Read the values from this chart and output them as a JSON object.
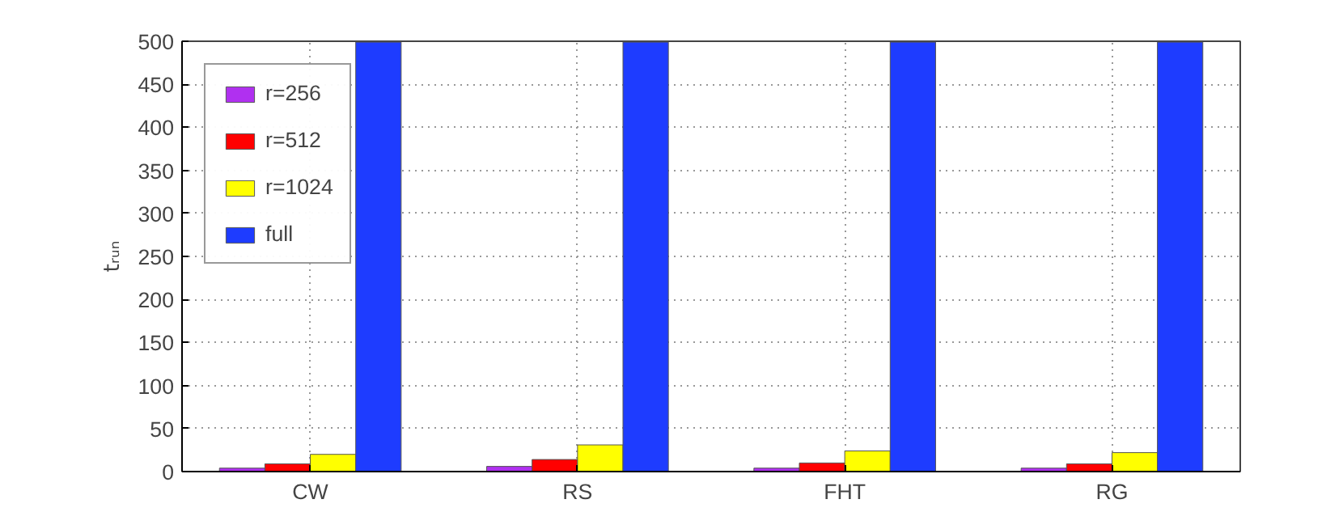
{
  "chart_data": {
    "type": "bar",
    "ylabel": "tᵣᵤₙ",
    "categories": [
      "CW",
      "RS",
      "FHT",
      "RG"
    ],
    "series": [
      {
        "name": "r=256",
        "color": "#b030f0",
        "values": [
          4,
          6,
          4,
          4
        ]
      },
      {
        "name": "r=512",
        "color": "#ff0000",
        "values": [
          9,
          14,
          10,
          9
        ]
      },
      {
        "name": "r=1024",
        "color": "#ffff00",
        "values": [
          20,
          31,
          24,
          22
        ]
      },
      {
        "name": "full",
        "color": "#1e3cff",
        "values": [
          499,
          499,
          499,
          499
        ]
      }
    ],
    "ylim": [
      0,
      500
    ],
    "yticks": [
      0,
      50,
      100,
      150,
      200,
      250,
      300,
      350,
      400,
      450,
      500
    ],
    "grid": true,
    "legend": "top left"
  }
}
